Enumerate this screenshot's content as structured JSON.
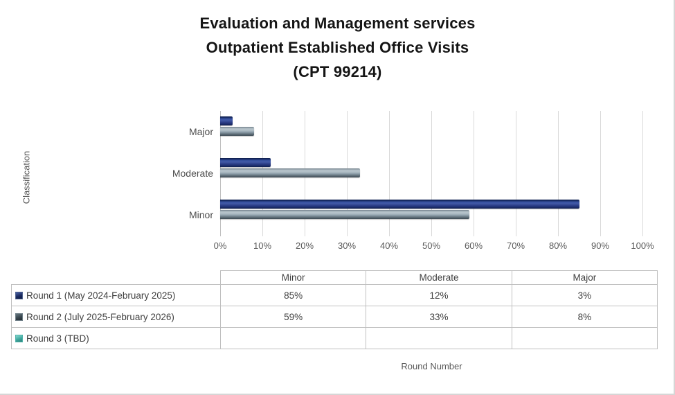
{
  "chart": {
    "title_lines": [
      "Evaluation and Management services",
      "Outpatient Established Office Visits",
      "(CPT 99214)"
    ],
    "y_axis_title": "Classification",
    "x_axis_title": "Round Number"
  },
  "chart_data": {
    "type": "bar",
    "orientation": "horizontal",
    "title": "Evaluation and Management services Outpatient Established Office Visits (CPT 99214)",
    "xlabel": "Round Number",
    "ylabel": "Classification",
    "categories_top_to_bottom": [
      "Major",
      "Moderate",
      "Minor"
    ],
    "x_ticks": [
      "0%",
      "10%",
      "20%",
      "30%",
      "40%",
      "50%",
      "60%",
      "70%",
      "80%",
      "90%",
      "100%"
    ],
    "xlim": [
      0,
      100
    ],
    "grid": true,
    "legend_position": "table-below",
    "series": [
      {
        "name": "Round 1 (May 2024-February 2025)",
        "color": "#1F2F6E",
        "values": {
          "Minor": 85,
          "Moderate": 12,
          "Major": 3
        }
      },
      {
        "name": "Round 2 (July 2025-February 2026)",
        "color": "#5D6C76",
        "values": {
          "Minor": 59,
          "Moderate": 33,
          "Major": 8
        }
      },
      {
        "name": "Round 3 (TBD)",
        "color": "#3FA89E",
        "values": {
          "Minor": null,
          "Moderate": null,
          "Major": null
        }
      }
    ]
  },
  "table": {
    "column_headers": [
      "Minor",
      "Moderate",
      "Major"
    ],
    "rows": [
      {
        "label": "Round 1 (May 2024-February 2025)",
        "marker_color": "#1F2F6E",
        "cells": [
          "85%",
          "12%",
          "3%"
        ]
      },
      {
        "label": "Round 2 (July 2025-February 2026)",
        "marker_color": "#5D6C76",
        "cells": [
          "59%",
          "33%",
          "8%"
        ]
      },
      {
        "label": "Round 3 (TBD)",
        "marker_color": "#3FA89E",
        "cells": [
          "",
          "",
          ""
        ]
      }
    ]
  },
  "colors": {
    "series_1_bar": "#2A3C85",
    "series_2_bar": "#8799A4",
    "series_3_marker": "#3FA89E",
    "gridline": "#D9D9D9",
    "table_border": "#BFBFBF",
    "axis_text": "#595959",
    "title_text": "#151515"
  }
}
